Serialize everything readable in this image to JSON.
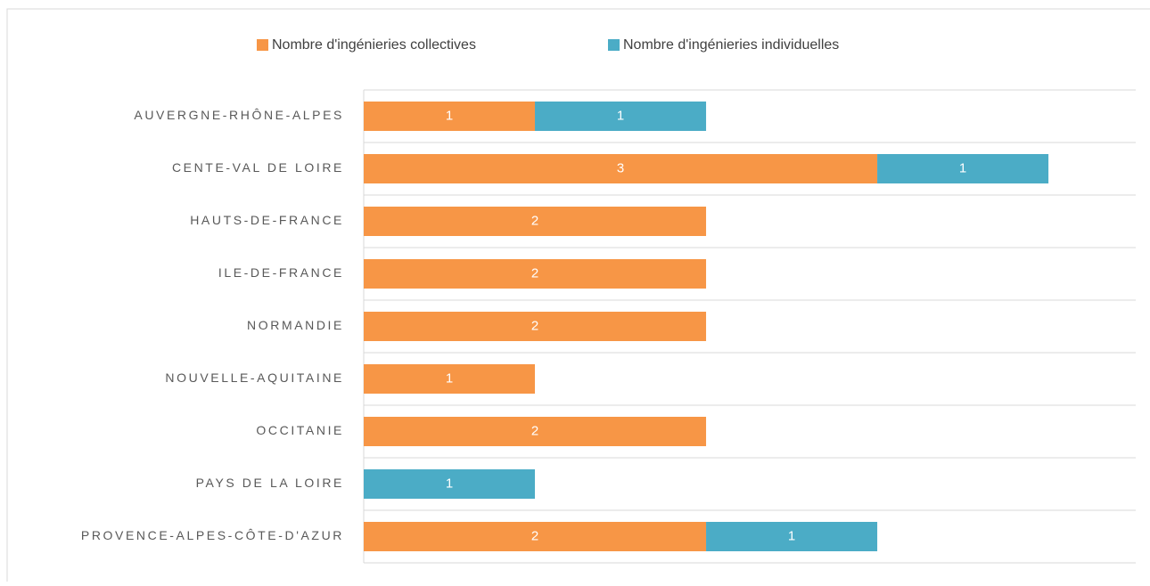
{
  "chart_data": {
    "type": "bar",
    "orientation": "horizontal",
    "stacked": true,
    "categories": [
      "AUVERGNE-RHÔNE-ALPES",
      "CENTE-VAL DE LOIRE",
      "HAUTS-DE-FRANCE",
      "ILE-DE-FRANCE",
      "NORMANDIE",
      "NOUVELLE-AQUITAINE",
      "OCCITANIE",
      "PAYS DE LA LOIRE",
      "PROVENCE-ALPES-CÔTE-D'AZUR"
    ],
    "series": [
      {
        "name": "Nombre d'ingénieries collectives",
        "color": "#F79646",
        "values": [
          1,
          3,
          2,
          2,
          2,
          1,
          2,
          null,
          2
        ]
      },
      {
        "name": "Nombre d'ingénieries individuelles",
        "color": "#4BACC6",
        "values": [
          1,
          1,
          null,
          null,
          null,
          null,
          null,
          1,
          1
        ]
      }
    ],
    "xlim": [
      0,
      4.51
    ],
    "grid": true,
    "legend": "top"
  }
}
